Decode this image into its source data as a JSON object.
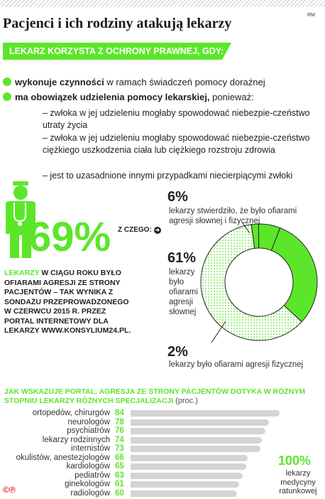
{
  "header": {
    "title": "Pacjenci i ich rodziny atakują lekarzy",
    "credit": "RM"
  },
  "conditions": {
    "banner": "LEKARZ KORZYSTA Z OCHRONY PRAWNEJ, GDY:",
    "bullet1_bold": "wykonuje czynności",
    "bullet1_rest": " w ramach świadczeń pomocy doraźnej",
    "bullet2_bold": "ma obowiązek udzielenia pomocy lekarskiej,",
    "bullet2_rest": " ponieważ:",
    "sub1": "– zwłoka w jej udzieleniu mogłaby spowodować niebezpie-czeństwo utraty życia",
    "sub2": "– zwłoka w jej udzieleniu mogłaby spowodować niebezpie-czeństwo ciężkiego uszkodzenia ciała lub ciężkiego rozstroju zdrowia",
    "sub3": "– jest to uzasadnione innymi przypadkami niecierpiącymi zwłoki"
  },
  "survey": {
    "big_pct": "69%",
    "source_hl": "LEKARZY",
    "source_rest": " W CIĄGU ROKU BYŁO OFIARAMI AGRESJI ZE STRONY PACJENTÓW – TAK WYNIKA Z SONDAŻU PRZEPROWADZONEGO W CZERWCU 2015 R. PRZEZ PORTAL INTERNETOWY DLA LEKARZY WWW.KONSYLIUM24.PL.",
    "zczego": "Z CZEGO:"
  },
  "colors": {
    "accent": "#5ce62a",
    "dotted": "#5ce62a",
    "bar_gray": "#d4d4d4"
  },
  "chart_data": [
    {
      "type": "pie",
      "donut": true,
      "slices": [
        {
          "value": 61,
          "label_pct": "61%",
          "label": "lekarzy było ofiarami agresji słownej",
          "fill": "dotted"
        },
        {
          "value": 6,
          "label_pct": "6%",
          "label": "lekarzy stwierdziło, że było ofiarami agresji słownej i fizycznej",
          "fill": "solid"
        },
        {
          "value": 2,
          "label_pct": "2%",
          "label": "lekarzy było ofiarami agresji fizycznej",
          "fill": "solid"
        }
      ],
      "lbl61": [
        "lekarzy",
        "było",
        "ofiarami",
        "agresji",
        "słownej"
      ]
    },
    {
      "type": "bar",
      "title": "JAK WSKAZUJE PORTAL, AGRESJA ZE STRONY PACJENTÓW DOTYKA W RÓŻNYM STOPNIU LEKARZY RÓŻNYCH SPECJALIZACJI",
      "unit": "(proc.)",
      "categories": [
        "ortopedów, chirurgów",
        "neurologów",
        "psychiatrów",
        "lekarzy rodzinnych",
        "internistów",
        "okulistów, anestezjologów",
        "kardiologów",
        "pediatrów",
        "ginekologów",
        "radiologów"
      ],
      "values": [
        84,
        78,
        76,
        74,
        73,
        66,
        65,
        63,
        61,
        60
      ],
      "values_text": [
        "84",
        "78",
        "76",
        "74",
        "73",
        "66",
        "65",
        "63",
        "61",
        "60"
      ],
      "xlim": [
        0,
        100
      ],
      "annotation_pct": "100%",
      "annotation_label": "lekarzy medycyny ratunkowej"
    }
  ]
}
